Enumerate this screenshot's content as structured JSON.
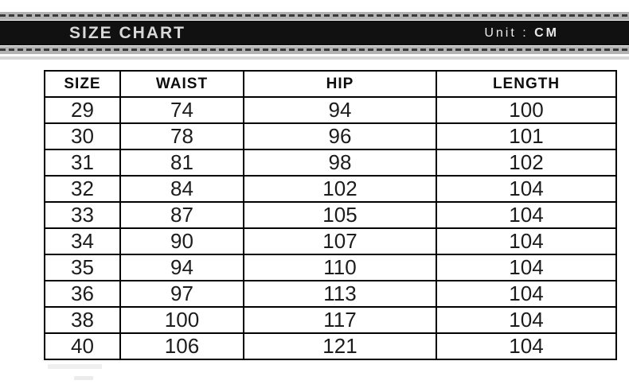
{
  "banner": {
    "title": "SIZE CHART",
    "unit_label": "Unit :",
    "unit_value": "CM"
  },
  "colors": {
    "bar_bg": "#111111",
    "bar_text": "#d9d9d9",
    "stripe_bg": "#b3b3b3",
    "stripe_dash": "#3a3a3a",
    "underline": "#d6d6d6",
    "table_border": "#000000"
  },
  "chart_data": {
    "type": "table",
    "title": "SIZE CHART",
    "unit": "CM",
    "columns": [
      "SIZE",
      "WAIST",
      "HIP",
      "LENGTH"
    ],
    "rows": [
      [
        29,
        74,
        94,
        100
      ],
      [
        30,
        78,
        96,
        101
      ],
      [
        31,
        81,
        98,
        102
      ],
      [
        32,
        84,
        102,
        104
      ],
      [
        33,
        87,
        105,
        104
      ],
      [
        34,
        90,
        107,
        104
      ],
      [
        35,
        94,
        110,
        104
      ],
      [
        36,
        97,
        113,
        104
      ],
      [
        38,
        100,
        117,
        104
      ],
      [
        40,
        106,
        121,
        104
      ]
    ]
  }
}
